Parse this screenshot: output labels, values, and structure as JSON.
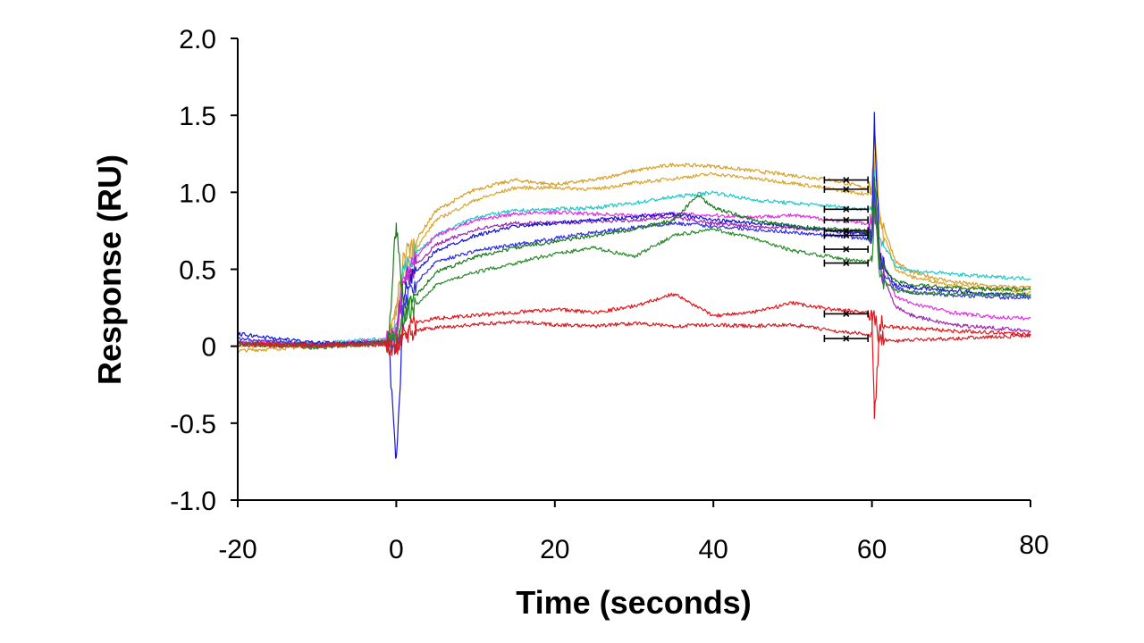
{
  "chart_data": {
    "type": "line",
    "title": "",
    "xlabel": "Time (seconds)",
    "ylabel": "Response  (RU)",
    "xlim": [
      -20,
      80
    ],
    "ylim": [
      -1.0,
      2.0
    ],
    "xticks": [
      -20,
      0,
      20,
      40,
      60,
      80
    ],
    "xtick_labels": [
      "-20",
      "0",
      "20",
      "40",
      "60",
      "80"
    ],
    "yticks": [
      2.0,
      1.5,
      1.0,
      0.5,
      0,
      -0.5,
      -1.0
    ],
    "ytick_labels": [
      "2.0",
      "1.5",
      "1.0",
      "0.5",
      "0",
      "-0.5",
      "-1.0"
    ],
    "grid": false,
    "legend": "none",
    "series": [
      {
        "name": "trace-orange-high",
        "color": "#D4A029",
        "x": [
          -20,
          -10,
          -1,
          0,
          1,
          2,
          5,
          10,
          15,
          20,
          25,
          30,
          35,
          40,
          45,
          50,
          55,
          59,
          60,
          60.3,
          61,
          63,
          65,
          70,
          75,
          80
        ],
        "y": [
          -0.03,
          0.0,
          0.02,
          0.25,
          0.6,
          0.65,
          0.88,
          1.02,
          1.08,
          1.05,
          1.08,
          1.14,
          1.18,
          1.17,
          1.14,
          1.11,
          1.08,
          1.03,
          1.04,
          1.38,
          0.85,
          0.55,
          0.48,
          0.42,
          0.39,
          0.38
        ]
      },
      {
        "name": "trace-orange-low",
        "color": "#D9A631",
        "x": [
          -20,
          -10,
          -1,
          0,
          1,
          2,
          5,
          10,
          15,
          20,
          25,
          30,
          35,
          40,
          45,
          50,
          55,
          59,
          60,
          60.3,
          61,
          63,
          65,
          70,
          75,
          80
        ],
        "y": [
          0.0,
          0.01,
          0.02,
          0.2,
          0.5,
          0.6,
          0.82,
          0.95,
          1.03,
          1.03,
          1.02,
          1.06,
          1.09,
          1.12,
          1.09,
          1.06,
          1.02,
          0.99,
          1.0,
          1.2,
          0.8,
          0.5,
          0.45,
          0.4,
          0.37,
          0.35
        ]
      },
      {
        "name": "trace-cyan",
        "color": "#1FC9C9",
        "x": [
          -20,
          -10,
          -1,
          0,
          1,
          2,
          5,
          10,
          15,
          20,
          25,
          30,
          35,
          40,
          45,
          50,
          55,
          59,
          60,
          60.3,
          61,
          63,
          65,
          70,
          75,
          80
        ],
        "y": [
          0.02,
          0.02,
          0.05,
          0.15,
          0.5,
          0.58,
          0.72,
          0.84,
          0.88,
          0.89,
          0.9,
          0.93,
          0.97,
          1.0,
          0.95,
          0.93,
          0.91,
          0.89,
          0.9,
          1.1,
          0.7,
          0.52,
          0.49,
          0.47,
          0.45,
          0.44
        ]
      },
      {
        "name": "trace-magenta",
        "color": "#E62EE6",
        "x": [
          -20,
          -10,
          -1,
          0,
          1,
          2,
          5,
          10,
          15,
          20,
          25,
          30,
          35,
          40,
          45,
          50,
          55,
          59,
          60,
          60.3,
          61,
          63,
          65,
          70,
          75,
          80
        ],
        "y": [
          0.03,
          0.01,
          0.04,
          0.1,
          0.45,
          0.55,
          0.72,
          0.82,
          0.86,
          0.87,
          0.86,
          0.85,
          0.86,
          0.85,
          0.84,
          0.85,
          0.82,
          0.8,
          0.8,
          0.95,
          0.6,
          0.32,
          0.28,
          0.22,
          0.19,
          0.18
        ]
      },
      {
        "name": "trace-purple",
        "color": "#9C27B0",
        "x": [
          -20,
          -10,
          -1,
          0,
          1,
          2,
          5,
          10,
          15,
          20,
          25,
          30,
          35,
          40,
          45,
          50,
          55,
          59,
          60,
          60.3,
          61,
          63,
          65,
          70,
          75,
          80
        ],
        "y": [
          0.02,
          0.0,
          0.03,
          0.1,
          0.42,
          0.5,
          0.66,
          0.76,
          0.8,
          0.8,
          0.81,
          0.82,
          0.84,
          0.8,
          0.78,
          0.77,
          0.75,
          0.73,
          0.73,
          0.9,
          0.5,
          0.26,
          0.2,
          0.14,
          0.12,
          0.1
        ]
      },
      {
        "name": "trace-blue-high",
        "color": "#1414D2",
        "x": [
          -20,
          -10,
          -1,
          0,
          1,
          2,
          5,
          10,
          15,
          20,
          25,
          30,
          35,
          40,
          45,
          50,
          55,
          59,
          60,
          60.3,
          61,
          63,
          65,
          70,
          75,
          80
        ],
        "y": [
          0.08,
          0.02,
          0.02,
          -0.72,
          0.32,
          0.45,
          0.62,
          0.72,
          0.78,
          0.8,
          0.82,
          0.84,
          0.86,
          0.82,
          0.8,
          0.78,
          0.75,
          0.73,
          0.73,
          1.52,
          0.55,
          0.4,
          0.38,
          0.36,
          0.34,
          0.33
        ]
      },
      {
        "name": "trace-blue-low",
        "color": "#2F2FE8",
        "x": [
          -20,
          -10,
          -1,
          0,
          1,
          2,
          5,
          10,
          15,
          20,
          25,
          30,
          35,
          40,
          45,
          50,
          55,
          59,
          60,
          60.3,
          61,
          63,
          65,
          70,
          75,
          80
        ],
        "y": [
          0.05,
          0.01,
          0.03,
          0.0,
          0.28,
          0.38,
          0.55,
          0.62,
          0.66,
          0.7,
          0.74,
          0.77,
          0.8,
          0.78,
          0.76,
          0.74,
          0.72,
          0.7,
          0.7,
          1.0,
          0.5,
          0.38,
          0.35,
          0.33,
          0.32,
          0.31
        ]
      },
      {
        "name": "trace-green-high",
        "color": "#1B7A1B",
        "x": [
          -20,
          -10,
          -1,
          0,
          1,
          2,
          5,
          10,
          15,
          20,
          25,
          30,
          35,
          38,
          40,
          45,
          50,
          55,
          59,
          60,
          60.3,
          61,
          63,
          65,
          70,
          75,
          80
        ],
        "y": [
          0.02,
          0.0,
          0.03,
          0.8,
          0.2,
          0.3,
          0.48,
          0.58,
          0.64,
          0.68,
          0.72,
          0.76,
          0.82,
          0.98,
          0.9,
          0.82,
          0.78,
          0.76,
          0.75,
          0.75,
          1.1,
          0.55,
          0.42,
          0.4,
          0.38,
          0.37,
          0.37
        ]
      },
      {
        "name": "trace-green-low",
        "color": "#2E8B2E",
        "x": [
          -20,
          -10,
          -1,
          0,
          1,
          2,
          5,
          10,
          15,
          20,
          25,
          30,
          35,
          40,
          45,
          50,
          55,
          59,
          60,
          60.3,
          61,
          63,
          65,
          70,
          75,
          80
        ],
        "y": [
          0.01,
          -0.01,
          0.02,
          0.05,
          0.15,
          0.24,
          0.4,
          0.48,
          0.54,
          0.6,
          0.64,
          0.58,
          0.72,
          0.76,
          0.7,
          0.62,
          0.58,
          0.55,
          0.55,
          0.9,
          0.45,
          0.36,
          0.35,
          0.34,
          0.34,
          0.33
        ]
      },
      {
        "name": "trace-red-high",
        "color": "#E8141A",
        "x": [
          -20,
          -10,
          -1,
          0,
          1,
          2,
          5,
          10,
          15,
          20,
          25,
          30,
          35,
          40,
          45,
          50,
          55,
          59,
          60,
          60.3,
          61,
          63,
          65,
          70,
          75,
          80
        ],
        "y": [
          0.02,
          0.01,
          0.02,
          0.0,
          0.1,
          0.15,
          0.18,
          0.2,
          0.22,
          0.24,
          0.22,
          0.26,
          0.34,
          0.2,
          0.22,
          0.28,
          0.24,
          0.22,
          0.22,
          -0.47,
          0.14,
          0.12,
          0.12,
          0.1,
          0.09,
          0.08
        ]
      },
      {
        "name": "trace-red-low",
        "color": "#D21E23",
        "x": [
          -20,
          -10,
          -1,
          0,
          1,
          2,
          5,
          10,
          15,
          20,
          25,
          30,
          35,
          40,
          45,
          50,
          55,
          59,
          60,
          60.3,
          61,
          63,
          65,
          70,
          75,
          80
        ],
        "y": [
          0.01,
          0.0,
          0.01,
          0.0,
          0.08,
          0.1,
          0.12,
          0.14,
          0.16,
          0.14,
          0.13,
          0.15,
          0.13,
          0.14,
          0.13,
          0.14,
          0.1,
          0.08,
          0.08,
          0.2,
          0.05,
          0.03,
          0.04,
          0.05,
          0.06,
          0.07
        ]
      }
    ],
    "fit_markers": {
      "color": "#000000",
      "x_start": 54,
      "x_end": 59.5,
      "y": [
        1.08,
        1.02,
        0.89,
        0.82,
        0.75,
        0.72,
        0.63,
        0.54,
        0.21,
        0.05
      ]
    }
  }
}
